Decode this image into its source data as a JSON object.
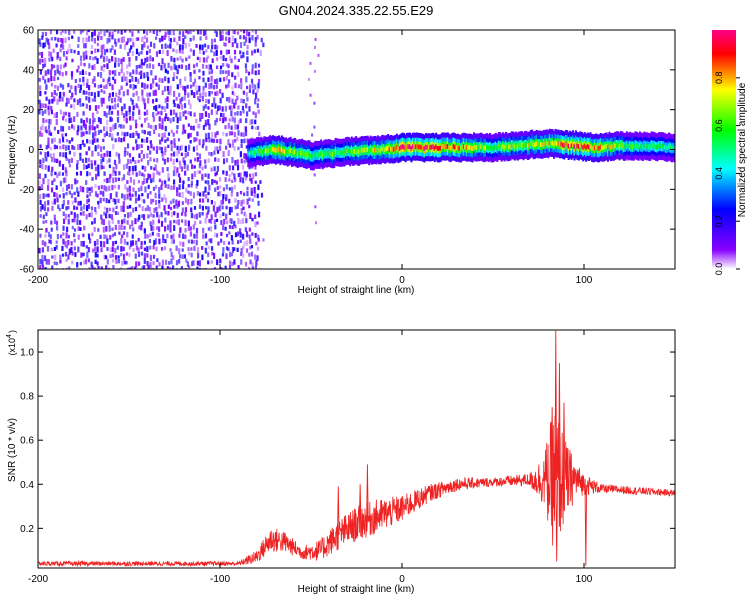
{
  "title": "GN04.2024.335.22.55.E29",
  "chart_data": [
    {
      "type": "heatmap",
      "xlabel": "Height of straight line (km)",
      "ylabel": "Frequency (Hz)",
      "xlim": [
        -200,
        150
      ],
      "ylim": [
        -60,
        60
      ],
      "x_ticks": [
        -200,
        -100,
        0,
        100
      ],
      "y_ticks": [
        -60,
        -40,
        -20,
        0,
        20,
        40,
        60
      ],
      "colorbar": {
        "label": "Normalized spectral amplitude",
        "range": [
          0,
          1
        ],
        "ticks": [
          0.0,
          0.2,
          0.4,
          0.6,
          0.8
        ],
        "tick_labels": [
          "0.0",
          "0.2",
          "0.4",
          "0.6",
          "0.8"
        ],
        "colormap": [
          "#ffffff",
          "#8800ff",
          "#0000ff",
          "#00ffff",
          "#00ff00",
          "#ffff00",
          "#ff0000",
          "#ff0088"
        ]
      },
      "ridge": {
        "description_points": [
          {
            "x": -85,
            "f": -2,
            "amp": 0.45
          },
          {
            "x": -70,
            "f": 0,
            "amp": 0.75
          },
          {
            "x": -50,
            "f": -3,
            "amp": 0.55
          },
          {
            "x": -30,
            "f": -1,
            "amp": 0.6
          },
          {
            "x": -10,
            "f": 0,
            "amp": 0.75
          },
          {
            "x": 0,
            "f": 1,
            "amp": 0.95
          },
          {
            "x": 20,
            "f": 1,
            "amp": 0.9
          },
          {
            "x": 50,
            "f": 1,
            "amp": 0.6
          },
          {
            "x": 80,
            "f": 3,
            "amp": 0.75
          },
          {
            "x": 95,
            "f": 2,
            "amp": 0.9
          },
          {
            "x": 105,
            "f": 1,
            "amp": 0.85
          },
          {
            "x": 125,
            "f": 2,
            "amp": 0.55
          },
          {
            "x": 150,
            "f": 1,
            "amp": 0.5
          }
        ]
      },
      "noise_region": {
        "x_start": -200,
        "x_end": -80
      }
    },
    {
      "type": "line",
      "xlabel": "Height of straight line (km)",
      "ylabel": "SNR (10 * v/v)",
      "multiplier_label": "(x10",
      "multiplier_exp": "4",
      "xlim": [
        -200,
        150
      ],
      "ylim": [
        0.02,
        1.1
      ],
      "x_ticks": [
        -200,
        -100,
        0,
        100
      ],
      "y_ticks": [
        0.2,
        0.4,
        0.6,
        0.8,
        1.0
      ],
      "grid": false,
      "series": [
        {
          "color": "#ff0000",
          "envelope": [
            {
              "x": -200,
              "base": 0.04,
              "amp": 0.01
            },
            {
              "x": -90,
              "base": 0.04,
              "amp": 0.01
            },
            {
              "x": -80,
              "base": 0.07,
              "amp": 0.03
            },
            {
              "x": -72,
              "base": 0.15,
              "amp": 0.06
            },
            {
              "x": -65,
              "base": 0.14,
              "amp": 0.05
            },
            {
              "x": -55,
              "base": 0.09,
              "amp": 0.03
            },
            {
              "x": -45,
              "base": 0.1,
              "amp": 0.05
            },
            {
              "x": -35,
              "base": 0.17,
              "amp": 0.07
            },
            {
              "x": -25,
              "base": 0.22,
              "amp": 0.08
            },
            {
              "x": -15,
              "base": 0.25,
              "amp": 0.08
            },
            {
              "x": 0,
              "base": 0.29,
              "amp": 0.06
            },
            {
              "x": 15,
              "base": 0.36,
              "amp": 0.04
            },
            {
              "x": 30,
              "base": 0.4,
              "amp": 0.03
            },
            {
              "x": 50,
              "base": 0.41,
              "amp": 0.02
            },
            {
              "x": 70,
              "base": 0.42,
              "amp": 0.03
            },
            {
              "x": 78,
              "base": 0.42,
              "amp": 0.12
            },
            {
              "x": 84,
              "base": 0.42,
              "amp": 0.35
            },
            {
              "x": 90,
              "base": 0.42,
              "amp": 0.18
            },
            {
              "x": 96,
              "base": 0.42,
              "amp": 0.08
            },
            {
              "x": 100,
              "base": 0.4,
              "amp": 0.05
            },
            {
              "x": 110,
              "base": 0.38,
              "amp": 0.02
            },
            {
              "x": 150,
              "base": 0.36,
              "amp": 0.015
            }
          ],
          "spikes": [
            {
              "x": -35,
              "y": 0.39
            },
            {
              "x": -19,
              "y": 0.49
            },
            {
              "x": -23,
              "y": 0.4
            },
            {
              "x": 84.5,
              "y": 1.1
            },
            {
              "x": 86.5,
              "y": 0.95
            },
            {
              "x": 82.5,
              "y": 0.75
            },
            {
              "x": 89,
              "y": 0.77
            },
            {
              "x": 85,
              "y": 0.05
            },
            {
              "x": 101,
              "y": 0.03
            }
          ]
        }
      ]
    }
  ]
}
